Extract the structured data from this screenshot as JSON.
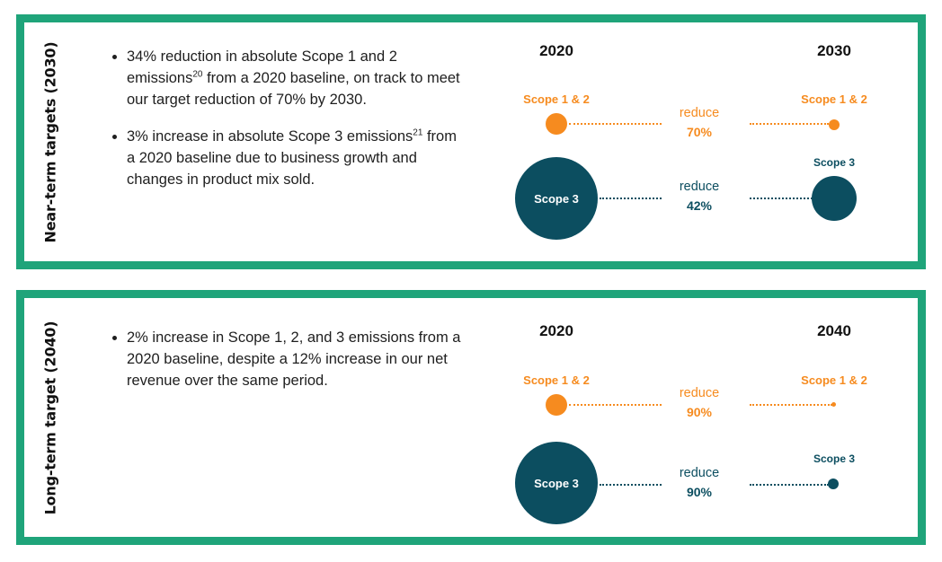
{
  "near_term": {
    "side_label": "Near-term targets (2030)",
    "bullets": [
      {
        "text": "34% reduction in absolute Scope 1 and 2 emissions",
        "sup": "20",
        "tail": " from a 2020 baseline, on track to meet our target reduction of 70% by 2030."
      },
      {
        "text": "3% increase in absolute Scope 3 emissions",
        "sup": "21",
        "tail": " from a 2020 baseline due to business growth and changes in product mix sold."
      }
    ],
    "year_start": "2020",
    "year_end": "2030",
    "scope12_label_start": "Scope 1 & 2",
    "scope12_label_end": "Scope 1 & 2",
    "scope12_reduce": "reduce",
    "scope12_pct": "70%",
    "scope3_label_start": "Scope 3",
    "scope3_label_end": "Scope 3",
    "scope3_reduce": "reduce",
    "scope3_pct": "42%"
  },
  "long_term": {
    "side_label": "Long-term target (2040)",
    "bullets": [
      {
        "text": "2% increase in Scope 1, 2, and 3 emissions from a 2020 baseline, despite a 12% increase in our net revenue over the same period.",
        "sup": "",
        "tail": ""
      }
    ],
    "year_start": "2020",
    "year_end": "2040",
    "scope12_label_start": "Scope 1 & 2",
    "scope12_label_end": "Scope 1 & 2",
    "scope12_reduce": "reduce",
    "scope12_pct": "90%",
    "scope3_label_start": "Scope 3",
    "scope3_label_end": "Scope 3",
    "scope3_reduce": "reduce",
    "scope3_pct": "90%"
  },
  "colors": {
    "border": "#1fa47a",
    "scope12": "#f68b1f",
    "scope3": "#0c4e60"
  }
}
